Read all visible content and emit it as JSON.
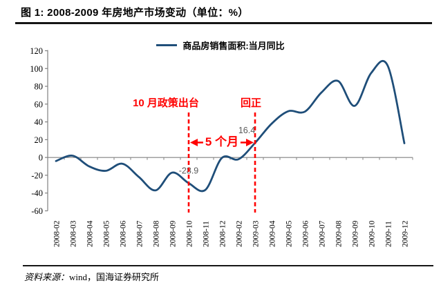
{
  "header": {
    "title": "图 1: 2008-2009 年房地产市场变动（单位：%）"
  },
  "legend": {
    "label": "商品房销售面积:当月同比"
  },
  "colors": {
    "line": "#1f4e79",
    "red": "#ff0000",
    "axis": "#808080",
    "point_label": "#595959",
    "text": "#000000"
  },
  "chart_data": {
    "type": "line",
    "title": "图 1: 2008-2009 年房地产市场变动（单位：%）",
    "xlabel": "",
    "ylabel": "",
    "ylim": [
      -60,
      120
    ],
    "ytick_step": 20,
    "grid": false,
    "legend_position": "top",
    "categories": [
      "2008-02",
      "2008-03",
      "2008-04",
      "2008-05",
      "2008-06",
      "2008-07",
      "2008-08",
      "2008-09",
      "2008-10",
      "2008-11",
      "2008-12",
      "2009-02",
      "2009-03",
      "2009-04",
      "2009-05",
      "2009-06",
      "2009-07",
      "2009-08",
      "2009-09",
      "2009-10",
      "2009-11",
      "2009-12"
    ],
    "series": [
      {
        "name": "商品房销售面积:当月同比",
        "values": [
          -4,
          2,
          -10,
          -15,
          -7,
          -22,
          -37,
          -17,
          -28.9,
          -36.5,
          -0.5,
          -2,
          16.4,
          38,
          52,
          51.5,
          73,
          86,
          58,
          95,
          103,
          16
        ]
      }
    ],
    "point_labels": [
      {
        "category_index": 8,
        "text": "-28.9",
        "dx": 0
      },
      {
        "category_index": 12,
        "text": "16.4",
        "dx": -12
      }
    ],
    "annotations": {
      "dashed_category_indexes": [
        8,
        12
      ],
      "policy_label": "10 月政策出台",
      "back_positive_label": "回正",
      "span_label": "5 个月"
    }
  },
  "source": {
    "prefix": "资料来源：",
    "text": "wind，国海证券研究所"
  }
}
